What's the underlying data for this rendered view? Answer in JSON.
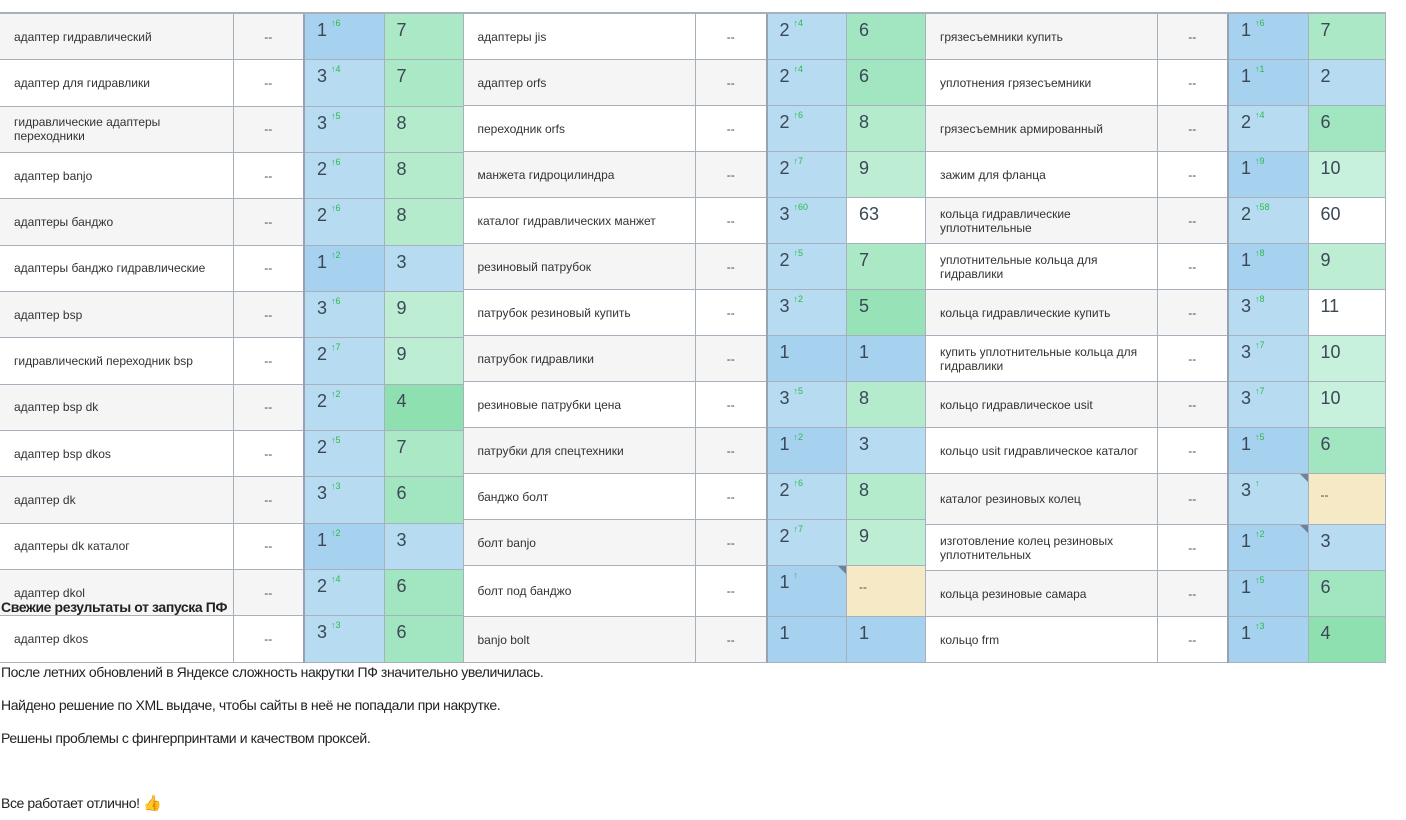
{
  "palette": {
    "pos_top": "#a6d1ef",
    "pos_other": "#b7dbf1",
    "no_data": "#f6e9c6",
    "delta_color": "#2dbb4a",
    "value_scale": {
      "1": "#a6d1ef",
      "2": "#b7dbf1",
      "3": "#b7dbf1",
      "4": "#8fe0b0",
      "5": "#97e2b6",
      "6": "#a1e6c0",
      "7": "#abe9c6",
      "8": "#b4ebcd",
      "9": "#bdeed4",
      "10": "#c7f1dd",
      "high": "#ffffff"
    }
  },
  "tables": [
    {
      "rows": [
        {
          "keyword": "адаптер гидравлический",
          "ws": "--",
          "pos": "1",
          "delta": "↑6",
          "val": "7"
        },
        {
          "keyword": "адаптер для гидравлики",
          "ws": "--",
          "pos": "3",
          "delta": "↑4",
          "val": "7"
        },
        {
          "keyword": "гидравлические адаптеры переходники",
          "ws": "--",
          "pos": "3",
          "delta": "↑5",
          "val": "8"
        },
        {
          "keyword": "адаптер banjo",
          "ws": "--",
          "pos": "2",
          "delta": "↑6",
          "val": "8"
        },
        {
          "keyword": "адаптеры банджо",
          "ws": "--",
          "pos": "2",
          "delta": "↑6",
          "val": "8"
        },
        {
          "keyword": "адаптеры банджо гидравлические",
          "ws": "--",
          "pos": "1",
          "delta": "↑2",
          "val": "3"
        },
        {
          "keyword": "адаптер bsp",
          "ws": "--",
          "pos": "3",
          "delta": "↑6",
          "val": "9"
        },
        {
          "keyword": "гидравлический переходник bsp",
          "ws": "--",
          "pos": "2",
          "delta": "↑7",
          "val": "9"
        },
        {
          "keyword": "адаптер bsp dk",
          "ws": "--",
          "pos": "2",
          "delta": "↑2",
          "val": "4"
        },
        {
          "keyword": "адаптер bsp dkos",
          "ws": "--",
          "pos": "2",
          "delta": "↑5",
          "val": "7"
        },
        {
          "keyword": "адаптер dk",
          "ws": "--",
          "pos": "3",
          "delta": "↑3",
          "val": "6"
        },
        {
          "keyword": "адаптеры dk каталог",
          "ws": "--",
          "pos": "1",
          "delta": "↑2",
          "val": "3"
        },
        {
          "keyword": "адаптер dkol",
          "ws": "--",
          "pos": "2",
          "delta": "↑4",
          "val": "6"
        },
        {
          "keyword": "адаптер dkos",
          "ws": "--",
          "pos": "3",
          "delta": "↑3",
          "val": "6"
        }
      ]
    },
    {
      "rows": [
        {
          "keyword": "адаптеры jis",
          "ws": "--",
          "pos": "2",
          "delta": "↑4",
          "val": "6"
        },
        {
          "keyword": "адаптер orfs",
          "ws": "--",
          "pos": "2",
          "delta": "↑4",
          "val": "6"
        },
        {
          "keyword": "переходник orfs",
          "ws": "--",
          "pos": "2",
          "delta": "↑6",
          "val": "8"
        },
        {
          "keyword": "манжета гидроцилиндра",
          "ws": "--",
          "pos": "2",
          "delta": "↑7",
          "val": "9"
        },
        {
          "keyword": "каталог гидравлических манжет",
          "ws": "--",
          "pos": "3",
          "delta": "↑60",
          "val": "63"
        },
        {
          "keyword": "резиновый патрубок",
          "ws": "--",
          "pos": "2",
          "delta": "↑5",
          "val": "7"
        },
        {
          "keyword": "патрубок резиновый купить",
          "ws": "--",
          "pos": "3",
          "delta": "↑2",
          "val": "5"
        },
        {
          "keyword": "патрубок гидравлики",
          "ws": "--",
          "pos": "1",
          "delta": "",
          "val": "1"
        },
        {
          "keyword": "резиновые патрубки цена",
          "ws": "--",
          "pos": "3",
          "delta": "↑5",
          "val": "8"
        },
        {
          "keyword": "патрубки для спецтехники",
          "ws": "--",
          "pos": "1",
          "delta": "↑2",
          "val": "3"
        },
        {
          "keyword": "банджо болт",
          "ws": "--",
          "pos": "2",
          "delta": "↑6",
          "val": "8"
        },
        {
          "keyword": "болт banjo",
          "ws": "--",
          "pos": "2",
          "delta": "↑7",
          "val": "9"
        },
        {
          "keyword": "болт под банджо",
          "ws": "--",
          "pos": "1",
          "delta": "↑",
          "val": "--",
          "flag": true
        },
        {
          "keyword": "banjo bolt",
          "ws": "--",
          "pos": "1",
          "delta": "",
          "val": "1"
        }
      ]
    },
    {
      "rows": [
        {
          "keyword": "грязесъемники купить",
          "ws": "--",
          "pos": "1",
          "delta": "↑6",
          "val": "7"
        },
        {
          "keyword": "уплотнения грязесъемники",
          "ws": "--",
          "pos": "1",
          "delta": "↑1",
          "val": "2"
        },
        {
          "keyword": "грязесъемник армированный",
          "ws": "--",
          "pos": "2",
          "delta": "↑4",
          "val": "6"
        },
        {
          "keyword": "зажим для фланца",
          "ws": "--",
          "pos": "1",
          "delta": "↑9",
          "val": "10"
        },
        {
          "keyword": "кольца гидравлические уплотнительные",
          "ws": "--",
          "pos": "2",
          "delta": "↑58",
          "val": "60"
        },
        {
          "keyword": "уплотнительные кольца для гидравлики",
          "ws": "--",
          "pos": "1",
          "delta": "↑8",
          "val": "9"
        },
        {
          "keyword": "кольца гидравлические купить",
          "ws": "--",
          "pos": "3",
          "delta": "↑8",
          "val": "11"
        },
        {
          "keyword": "купить уплотнительные кольца для гидравлики",
          "ws": "--",
          "pos": "3",
          "delta": "↑7",
          "val": "10"
        },
        {
          "keyword": "кольцо гидравлическое usit",
          "ws": "--",
          "pos": "3",
          "delta": "↑7",
          "val": "10"
        },
        {
          "keyword": "кольцо usit гидравлическое каталог",
          "ws": "--",
          "pos": "1",
          "delta": "↑5",
          "val": "6"
        },
        {
          "keyword": "каталог резиновых колец",
          "ws": "--",
          "pos": "3",
          "delta": "↑",
          "val": "--",
          "flag": true
        },
        {
          "keyword": "изготовление колец резиновых уплотнительных",
          "ws": "--",
          "pos": "1",
          "delta": "↑2",
          "val": "3",
          "flag": true
        },
        {
          "keyword": "кольца резиновые самара",
          "ws": "--",
          "pos": "1",
          "delta": "↑5",
          "val": "6"
        },
        {
          "keyword": "кольцо frm",
          "ws": "--",
          "pos": "1",
          "delta": "↑3",
          "val": "4"
        }
      ]
    }
  ],
  "post": {
    "title": "Свежие результаты от запуска ПФ",
    "p1": "После летних обновлений в Яндексе сложность накрутки ПФ значительно увеличилась.",
    "p2": "Найдено решение по XML выдаче, чтобы сайты в неё не попадали при накрутке.",
    "p3": "Решены проблемы с фингерпринтами и качеством проксей.",
    "p4": "Все работает отлично!",
    "emoji": "👍",
    "emoji_icon": "thumbs-up-icon"
  }
}
